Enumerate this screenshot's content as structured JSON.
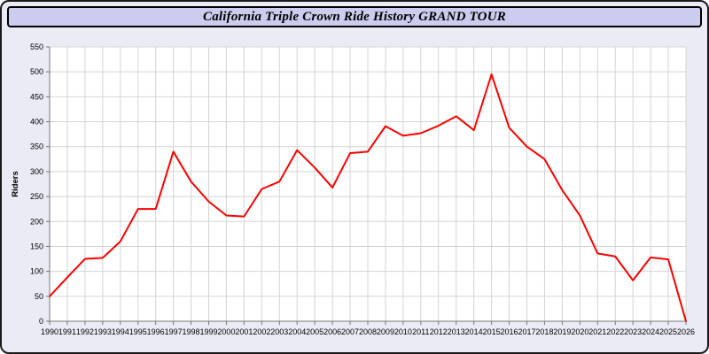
{
  "header": {
    "title": "California Triple Crown Ride History GRAND TOUR"
  },
  "theme": {
    "window_bg": "#ebebf6",
    "title_bar_bg": "#ccccee",
    "window_border": "#1a1a1a"
  },
  "chart_data": {
    "type": "line",
    "title": "California Triple Crown Ride History GRAND TOUR",
    "xlabel": "",
    "ylabel": "Riders",
    "x": [
      1990,
      1991,
      1992,
      1993,
      1994,
      1995,
      1996,
      1997,
      1998,
      1999,
      2000,
      2001,
      2002,
      2003,
      2004,
      2005,
      2006,
      2007,
      2008,
      2009,
      2010,
      2011,
      2012,
      2013,
      2014,
      2015,
      2016,
      2017,
      2018,
      2019,
      2020,
      2021,
      2022,
      2023,
      2024,
      2025,
      2026
    ],
    "series": [
      {
        "name": "Riders",
        "color": "#ff0000",
        "values": [
          50,
          88,
          125,
          127,
          160,
          225,
          225,
          340,
          280,
          240,
          212,
          210,
          265,
          280,
          343,
          308,
          268,
          337,
          340,
          391,
          372,
          377,
          392,
          411,
          383,
          495,
          388,
          350,
          325,
          263,
          212,
          136,
          130,
          82,
          128,
          124,
          0
        ]
      }
    ],
    "ylim": [
      0,
      550
    ],
    "ytick_step": 50,
    "grid": true,
    "legend": "none",
    "colors": {
      "line": "#ff0000",
      "grid": "#d4d4d4",
      "axis": "#777777",
      "plot_bg": "#ffffff",
      "tick_text": "#000000"
    }
  }
}
